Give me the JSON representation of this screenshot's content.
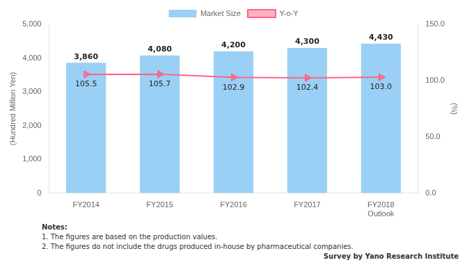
{
  "chart_data": {
    "type": "bar",
    "categories": [
      "FY2014",
      "FY2015",
      "FY2016",
      "FY2017",
      "FY2018\nOutlook"
    ],
    "series": [
      {
        "name": "Market Size",
        "type": "bar",
        "values": [
          3860,
          4080,
          4200,
          4300,
          4430
        ],
        "value_labels": [
          "3,860",
          "4,080",
          "4,200",
          "4,300",
          "4,430"
        ]
      },
      {
        "name": "Y-o-Y",
        "type": "line",
        "axis": "y2",
        "marker": "triangle",
        "values": [
          105.5,
          105.7,
          102.9,
          102.4,
          103.0
        ],
        "value_labels": [
          "105.5",
          "105.7",
          "102.9",
          "102.4",
          "103.0"
        ]
      }
    ],
    "ylabel": "(Hundred Million Yen)",
    "y2label": "(%)",
    "ylim": [
      0,
      5000
    ],
    "yticks": [
      0,
      {
        "value": 1000,
        "label": "1,000"
      },
      {
        "value": 2000,
        "label": "2,000"
      },
      {
        "value": 3000,
        "label": "3,000"
      },
      {
        "value": 4000,
        "label": "4,000"
      },
      {
        "value": 5000,
        "label": "5,000"
      }
    ],
    "y2lim": [
      0.0,
      150.0
    ],
    "y2ticks": [
      {
        "value": 0,
        "label": "0.0"
      },
      {
        "value": 50,
        "label": "50.0"
      },
      {
        "value": 100,
        "label": "100.0"
      },
      {
        "value": 150,
        "label": "150.0"
      }
    ],
    "annotations": [
      "Notes:",
      "1. The figures are based on the production values.",
      "2. The figures do not include the drugs produced in-house by pharmaceutical companies.",
      "Survey by Yano Research Institute"
    ],
    "legend": "top",
    "grid": false,
    "data_labels": true
  }
}
